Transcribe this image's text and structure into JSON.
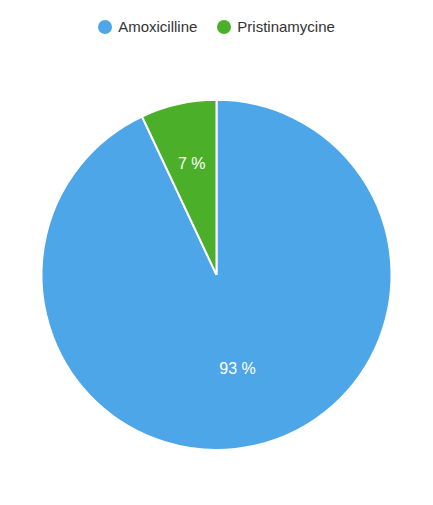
{
  "chart_data": {
    "type": "pie",
    "categories": [
      "Amoxicilline",
      "Pristinamycine"
    ],
    "values": [
      93,
      7
    ],
    "value_labels": [
      "93 %",
      "7 %"
    ],
    "colors": [
      "#4da6e8",
      "#4caf2a"
    ],
    "data_labels": true,
    "legend": "top"
  }
}
